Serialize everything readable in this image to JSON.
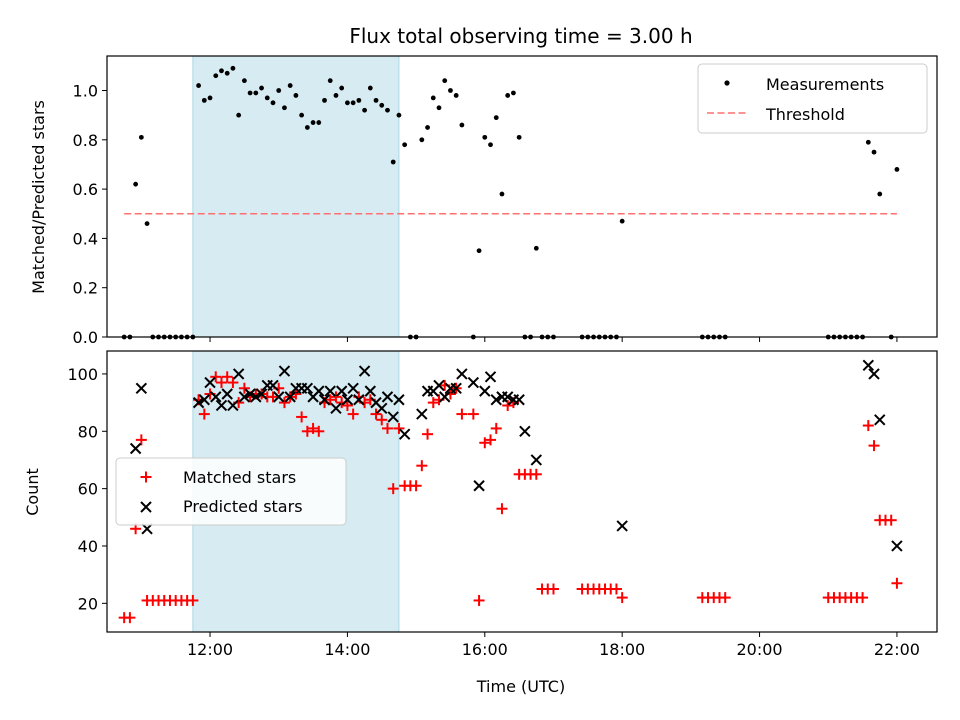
{
  "title": "Flux total observing time = 3.00 h",
  "colors": {
    "measurements": "#000000",
    "threshold": "#ff6f6f",
    "matched": "#ff0000",
    "predicted": "#000000",
    "shade": "#add8e6"
  },
  "chart_data": [
    {
      "type": "scatter",
      "ylabel": "Matched/Predicted stars",
      "ylim": [
        0,
        1.14
      ],
      "yticks": [
        "0.0",
        "0.2",
        "0.4",
        "0.6",
        "0.8",
        "1.0"
      ],
      "legend_position": "upper right",
      "shaded_interval": [
        "11:45",
        "14:45"
      ],
      "threshold": {
        "name": "Threshold",
        "y": 0.5,
        "x": [
          "10:45",
          "22:00"
        ]
      },
      "series": [
        {
          "name": "Measurements",
          "points": [
            [
              "10:45",
              0
            ],
            [
              "10:50",
              0
            ],
            [
              "10:55",
              0.62
            ],
            [
              "11:00",
              0.81
            ],
            [
              "11:05",
              0.46
            ],
            [
              "11:10",
              0
            ],
            [
              "11:15",
              0
            ],
            [
              "11:20",
              0
            ],
            [
              "11:25",
              0
            ],
            [
              "11:30",
              0
            ],
            [
              "11:35",
              0
            ],
            [
              "11:40",
              0
            ],
            [
              "11:45",
              0
            ],
            [
              "11:50",
              1.02
            ],
            [
              "11:55",
              0.96
            ],
            [
              "12:00",
              0.97
            ],
            [
              "12:05",
              1.06
            ],
            [
              "12:10",
              1.08
            ],
            [
              "12:15",
              1.07
            ],
            [
              "12:20",
              1.09
            ],
            [
              "12:25",
              0.9
            ],
            [
              "12:30",
              1.04
            ],
            [
              "12:35",
              0.99
            ],
            [
              "12:40",
              0.99
            ],
            [
              "12:45",
              1.01
            ],
            [
              "12:50",
              0.97
            ],
            [
              "12:55",
              0.95
            ],
            [
              "13:00",
              1.0
            ],
            [
              "13:05",
              0.93
            ],
            [
              "13:10",
              1.02
            ],
            [
              "13:15",
              0.98
            ],
            [
              "13:20",
              0.9
            ],
            [
              "13:25",
              0.85
            ],
            [
              "13:30",
              0.87
            ],
            [
              "13:35",
              0.87
            ],
            [
              "13:40",
              0.96
            ],
            [
              "13:45",
              1.04
            ],
            [
              "13:50",
              0.98
            ],
            [
              "13:55",
              1.01
            ],
            [
              "14:00",
              0.95
            ],
            [
              "14:05",
              0.95
            ],
            [
              "14:10",
              0.96
            ],
            [
              "14:15",
              0.92
            ],
            [
              "14:20",
              1.01
            ],
            [
              "14:25",
              0.96
            ],
            [
              "14:30",
              0.94
            ],
            [
              "14:35",
              0.92
            ],
            [
              "14:40",
              0.71
            ],
            [
              "14:45",
              0.9
            ],
            [
              "14:50",
              0.78
            ],
            [
              "14:55",
              0
            ],
            [
              "15:00",
              0
            ],
            [
              "15:05",
              0.8
            ],
            [
              "15:10",
              0.85
            ],
            [
              "15:15",
              0.97
            ],
            [
              "15:20",
              0.93
            ],
            [
              "15:25",
              1.04
            ],
            [
              "15:30",
              1.0
            ],
            [
              "15:35",
              0.98
            ],
            [
              "15:40",
              0.86
            ],
            [
              "15:50",
              0
            ],
            [
              "15:55",
              0.35
            ],
            [
              "16:00",
              0.81
            ],
            [
              "16:05",
              0.78
            ],
            [
              "16:10",
              0.89
            ],
            [
              "16:15",
              0.58
            ],
            [
              "16:20",
              0.98
            ],
            [
              "16:25",
              0.99
            ],
            [
              "16:30",
              0.81
            ],
            [
              "16:35",
              0
            ],
            [
              "16:40",
              0
            ],
            [
              "16:45",
              0.36
            ],
            [
              "16:50",
              0
            ],
            [
              "16:55",
              0
            ],
            [
              "17:00",
              0
            ],
            [
              "17:25",
              0
            ],
            [
              "17:30",
              0
            ],
            [
              "17:35",
              0
            ],
            [
              "17:40",
              0
            ],
            [
              "17:45",
              0
            ],
            [
              "17:50",
              0
            ],
            [
              "17:55",
              0
            ],
            [
              "18:00",
              0.47
            ],
            [
              "19:10",
              0
            ],
            [
              "19:15",
              0
            ],
            [
              "19:20",
              0
            ],
            [
              "19:25",
              0
            ],
            [
              "19:30",
              0
            ],
            [
              "21:00",
              0
            ],
            [
              "21:05",
              0
            ],
            [
              "21:10",
              0
            ],
            [
              "21:15",
              0
            ],
            [
              "21:20",
              0
            ],
            [
              "21:25",
              0
            ],
            [
              "21:30",
              0
            ],
            [
              "21:35",
              0.79
            ],
            [
              "21:40",
              0.75
            ],
            [
              "21:45",
              0.58
            ],
            [
              "21:55",
              0
            ],
            [
              "22:00",
              0.68
            ]
          ]
        }
      ]
    },
    {
      "type": "scatter",
      "ylabel": "Count",
      "xlabel": "Time (UTC)",
      "ylim": [
        10,
        108
      ],
      "yticks": [
        "20",
        "40",
        "60",
        "80",
        "100"
      ],
      "xlim": [
        "10:30",
        "22:35"
      ],
      "xticks": [
        "12:00",
        "14:00",
        "16:00",
        "18:00",
        "20:00",
        "22:00"
      ],
      "legend_position": "center left",
      "shaded_interval": [
        "11:45",
        "14:45"
      ],
      "series": [
        {
          "name": "Matched stars",
          "marker": "+",
          "points": [
            [
              "10:45",
              15
            ],
            [
              "10:50",
              15
            ],
            [
              "10:55",
              46
            ],
            [
              "11:00",
              77
            ],
            [
              "11:05",
              21
            ],
            [
              "11:10",
              21
            ],
            [
              "11:15",
              21
            ],
            [
              "11:20",
              21
            ],
            [
              "11:25",
              21
            ],
            [
              "11:30",
              21
            ],
            [
              "11:35",
              21
            ],
            [
              "11:40",
              21
            ],
            [
              "11:45",
              21
            ],
            [
              "11:50",
              91
            ],
            [
              "11:55",
              86
            ],
            [
              "12:00",
              93
            ],
            [
              "12:05",
              99
            ],
            [
              "12:10",
              97
            ],
            [
              "12:15",
              99
            ],
            [
              "12:20",
              97
            ],
            [
              "12:25",
              90
            ],
            [
              "12:30",
              95
            ],
            [
              "12:35",
              92
            ],
            [
              "12:40",
              93
            ],
            [
              "12:45",
              93
            ],
            [
              "12:50",
              92
            ],
            [
              "12:55",
              92
            ],
            [
              "13:00",
              95
            ],
            [
              "13:05",
              90
            ],
            [
              "13:10",
              92
            ],
            [
              "13:15",
              93
            ],
            [
              "13:20",
              85
            ],
            [
              "13:25",
              80
            ],
            [
              "13:30",
              81
            ],
            [
              "13:35",
              80
            ],
            [
              "13:40",
              90
            ],
            [
              "13:45",
              91
            ],
            [
              "13:50",
              92
            ],
            [
              "13:55",
              90
            ],
            [
              "14:00",
              89
            ],
            [
              "14:05",
              86
            ],
            [
              "14:10",
              92
            ],
            [
              "14:15",
              90
            ],
            [
              "14:20",
              91
            ],
            [
              "14:25",
              86
            ],
            [
              "14:30",
              84
            ],
            [
              "14:35",
              81
            ],
            [
              "14:40",
              60
            ],
            [
              "14:45",
              81
            ],
            [
              "14:50",
              61
            ],
            [
              "14:55",
              61
            ],
            [
              "15:00",
              61
            ],
            [
              "15:05",
              68
            ],
            [
              "15:10",
              79
            ],
            [
              "15:15",
              90
            ],
            [
              "15:20",
              91
            ],
            [
              "15:25",
              96
            ],
            [
              "15:30",
              93
            ],
            [
              "15:35",
              95
            ],
            [
              "15:40",
              86
            ],
            [
              "15:50",
              86
            ],
            [
              "15:55",
              21
            ],
            [
              "16:00",
              76
            ],
            [
              "16:05",
              77
            ],
            [
              "16:10",
              81
            ],
            [
              "16:15",
              53
            ],
            [
              "16:20",
              89
            ],
            [
              "16:25",
              90
            ],
            [
              "16:30",
              65
            ],
            [
              "16:35",
              65
            ],
            [
              "16:40",
              65
            ],
            [
              "16:45",
              65
            ],
            [
              "16:50",
              25
            ],
            [
              "16:55",
              25
            ],
            [
              "17:00",
              25
            ],
            [
              "17:25",
              25
            ],
            [
              "17:30",
              25
            ],
            [
              "17:35",
              25
            ],
            [
              "17:40",
              25
            ],
            [
              "17:45",
              25
            ],
            [
              "17:50",
              25
            ],
            [
              "17:55",
              25
            ],
            [
              "18:00",
              22
            ],
            [
              "19:10",
              22
            ],
            [
              "19:15",
              22
            ],
            [
              "19:20",
              22
            ],
            [
              "19:25",
              22
            ],
            [
              "19:30",
              22
            ],
            [
              "21:00",
              22
            ],
            [
              "21:05",
              22
            ],
            [
              "21:10",
              22
            ],
            [
              "21:15",
              22
            ],
            [
              "21:20",
              22
            ],
            [
              "21:25",
              22
            ],
            [
              "21:30",
              22
            ],
            [
              "21:35",
              82
            ],
            [
              "21:40",
              75
            ],
            [
              "21:45",
              49
            ],
            [
              "21:50",
              49
            ],
            [
              "21:55",
              49
            ],
            [
              "22:00",
              27
            ]
          ]
        },
        {
          "name": "Predicted stars",
          "marker": "x",
          "points": [
            [
              "10:55",
              74
            ],
            [
              "11:00",
              95
            ],
            [
              "11:05",
              46
            ],
            [
              "11:50",
              90
            ],
            [
              "11:55",
              91
            ],
            [
              "12:00",
              97
            ],
            [
              "12:05",
              92
            ],
            [
              "12:10",
              89
            ],
            [
              "12:15",
              93
            ],
            [
              "12:20",
              89
            ],
            [
              "12:25",
              100
            ],
            [
              "12:30",
              92
            ],
            [
              "12:35",
              93
            ],
            [
              "12:40",
              92
            ],
            [
              "12:45",
              93
            ],
            [
              "12:50",
              96
            ],
            [
              "12:55",
              96
            ],
            [
              "13:00",
              92
            ],
            [
              "13:05",
              101
            ],
            [
              "13:10",
              92
            ],
            [
              "13:15",
              95
            ],
            [
              "13:20",
              95
            ],
            [
              "13:25",
              95
            ],
            [
              "13:30",
              92
            ],
            [
              "13:35",
              94
            ],
            [
              "13:40",
              91
            ],
            [
              "13:45",
              94
            ],
            [
              "13:50",
              88
            ],
            [
              "13:55",
              94
            ],
            [
              "14:00",
              91
            ],
            [
              "14:05",
              95
            ],
            [
              "14:10",
              91
            ],
            [
              "14:15",
              101
            ],
            [
              "14:20",
              94
            ],
            [
              "14:25",
              90
            ],
            [
              "14:30",
              88
            ],
            [
              "14:35",
              92
            ],
            [
              "14:40",
              85
            ],
            [
              "14:45",
              91
            ],
            [
              "14:50",
              79
            ],
            [
              "15:05",
              86
            ],
            [
              "15:10",
              94
            ],
            [
              "15:15",
              94
            ],
            [
              "15:20",
              96
            ],
            [
              "15:25",
              92
            ],
            [
              "15:30",
              95
            ],
            [
              "15:35",
              95
            ],
            [
              "15:40",
              100
            ],
            [
              "15:50",
              97
            ],
            [
              "15:55",
              61
            ],
            [
              "16:00",
              94
            ],
            [
              "16:05",
              99
            ],
            [
              "16:10",
              91
            ],
            [
              "16:15",
              92
            ],
            [
              "16:20",
              92
            ],
            [
              "16:25",
              91
            ],
            [
              "16:30",
              91
            ],
            [
              "16:35",
              80
            ],
            [
              "16:45",
              70
            ],
            [
              "18:00",
              47
            ],
            [
              "21:35",
              103
            ],
            [
              "21:40",
              100
            ],
            [
              "21:45",
              84
            ],
            [
              "22:00",
              40
            ]
          ]
        }
      ]
    }
  ]
}
